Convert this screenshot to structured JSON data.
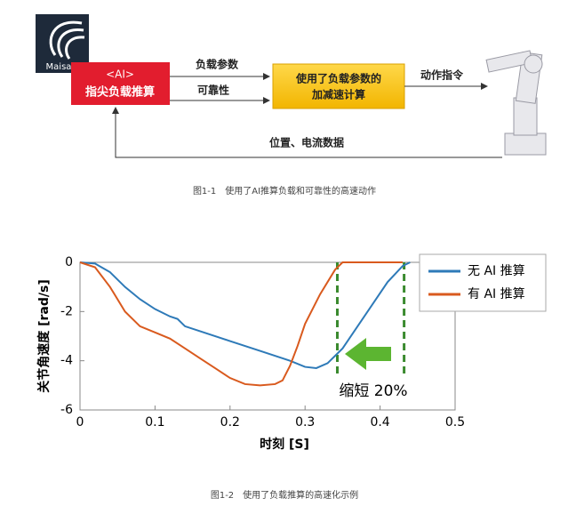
{
  "diagram": {
    "logo": "Maisart",
    "box_ai_tag": "<AI>",
    "box_ai": "指尖负载推算",
    "arrow_load": "负载参数",
    "arrow_reliability": "可靠性",
    "box_calc_line1": "使用了负载参数的",
    "box_calc_line2": "加减速计算",
    "arrow_command": "动作指令",
    "feedback": "位置、电流数据",
    "caption": "图1-1　使用了AI推算负载和可靠性的高速动作"
  },
  "chart_data": {
    "type": "line",
    "caption": "图1-2　使用了负载推算的高速化示例",
    "x_label": "时刻 [S]",
    "y_label": "关节角速度 [rad/s]",
    "annotation": "缩短 20%",
    "xlim": [
      0,
      0.5
    ],
    "ylim": [
      -6,
      0
    ],
    "xticks": [
      0,
      0.1,
      0.2,
      0.3,
      0.4,
      0.5
    ],
    "yticks": [
      0,
      -2,
      -4,
      -6
    ],
    "vlines": [
      0.343,
      0.432
    ],
    "vline_color": "#3a8a2e",
    "series": [
      {
        "name": "无 AI 推算",
        "color": "#2e7ab8",
        "x": [
          0,
          0.02,
          0.04,
          0.06,
          0.08,
          0.1,
          0.12,
          0.13,
          0.14,
          0.16,
          0.2,
          0.24,
          0.28,
          0.3,
          0.315,
          0.33,
          0.35,
          0.37,
          0.39,
          0.41,
          0.43,
          0.44
        ],
        "values": [
          0,
          -0.05,
          -0.4,
          -1.0,
          -1.5,
          -1.9,
          -2.2,
          -2.3,
          -2.6,
          -2.8,
          -3.2,
          -3.6,
          -4.0,
          -4.25,
          -4.3,
          -4.1,
          -3.5,
          -2.6,
          -1.7,
          -0.8,
          -0.15,
          0
        ]
      },
      {
        "name": "有 AI 推算",
        "color": "#d95a1e",
        "x": [
          0,
          0.02,
          0.04,
          0.06,
          0.08,
          0.1,
          0.12,
          0.14,
          0.16,
          0.18,
          0.2,
          0.22,
          0.24,
          0.26,
          0.27,
          0.28,
          0.29,
          0.3,
          0.32,
          0.34,
          0.35,
          0.43
        ],
        "values": [
          0,
          -0.2,
          -1.0,
          -2.0,
          -2.6,
          -2.85,
          -3.1,
          -3.5,
          -3.9,
          -4.3,
          -4.7,
          -4.95,
          -5.0,
          -4.95,
          -4.8,
          -4.2,
          -3.4,
          -2.5,
          -1.3,
          -0.3,
          0,
          0
        ]
      }
    ]
  }
}
